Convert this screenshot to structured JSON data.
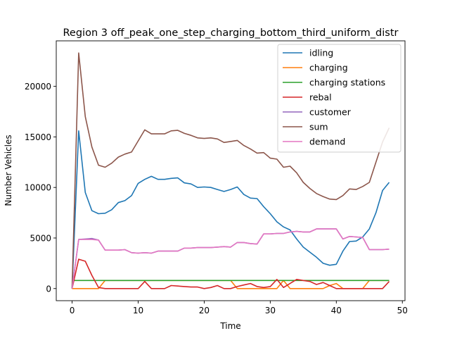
{
  "chart_data": {
    "type": "line",
    "title": "Region 3 off_peak_one_step_charging_bottom_third_uniform_distr",
    "xlabel": "Time",
    "ylabel": "Number Vehicles",
    "xlim": [
      -2.4,
      50.4
    ],
    "ylim": [
      -1200,
      24500
    ],
    "xticks": [
      0,
      10,
      20,
      30,
      40,
      50
    ],
    "yticks": [
      0,
      5000,
      10000,
      15000,
      20000
    ],
    "grid": false,
    "legend_position": "top-right",
    "x": [
      0,
      1,
      2,
      3,
      4,
      5,
      6,
      7,
      8,
      9,
      10,
      11,
      12,
      13,
      14,
      15,
      16,
      17,
      18,
      19,
      20,
      21,
      22,
      23,
      24,
      25,
      26,
      27,
      28,
      29,
      30,
      31,
      32,
      33,
      34,
      35,
      36,
      37,
      38,
      39,
      40,
      41,
      42,
      43,
      44,
      45,
      46,
      47,
      48
    ],
    "series": [
      {
        "name": "idling",
        "color": "#1f77b4",
        "values": [
          0,
          15600,
          9500,
          7700,
          7400,
          7450,
          7800,
          8500,
          8700,
          9200,
          10400,
          10800,
          11100,
          10800,
          10800,
          10900,
          10950,
          10450,
          10350,
          10000,
          10050,
          10000,
          9800,
          9600,
          9800,
          10050,
          9300,
          8950,
          8900,
          8100,
          7400,
          6600,
          6100,
          5800,
          4900,
          4100,
          3600,
          3100,
          2500,
          2300,
          2400,
          3700,
          4650,
          4700,
          5100,
          5900,
          7500,
          9700,
          10500
        ]
      },
      {
        "name": "charging",
        "color": "#ff7f0e",
        "values": [
          0,
          0,
          0,
          0,
          0,
          800,
          800,
          800,
          800,
          800,
          800,
          800,
          800,
          800,
          800,
          800,
          800,
          800,
          800,
          800,
          800,
          800,
          800,
          800,
          800,
          0,
          0,
          0,
          0,
          0,
          0,
          0,
          800,
          0,
          0,
          0,
          0,
          0,
          0,
          300,
          500,
          0,
          0,
          0,
          0,
          800,
          800,
          800,
          800
        ]
      },
      {
        "name": "charging stations",
        "color": "#2ca02c",
        "values": [
          800,
          800,
          800,
          800,
          800,
          800,
          800,
          800,
          800,
          800,
          800,
          800,
          800,
          800,
          800,
          800,
          800,
          800,
          800,
          800,
          800,
          800,
          800,
          800,
          800,
          800,
          800,
          800,
          800,
          800,
          800,
          800,
          800,
          800,
          800,
          800,
          800,
          800,
          800,
          800,
          800,
          800,
          800,
          800,
          800,
          800,
          800,
          800,
          800
        ]
      },
      {
        "name": "rebal",
        "color": "#d62728",
        "values": [
          0,
          2900,
          2700,
          1300,
          100,
          0,
          0,
          0,
          0,
          0,
          0,
          700,
          0,
          0,
          0,
          300,
          250,
          200,
          150,
          150,
          0,
          100,
          300,
          0,
          0,
          200,
          350,
          500,
          200,
          100,
          200,
          900,
          100,
          500,
          900,
          800,
          700,
          400,
          600,
          300,
          0,
          0,
          0,
          0,
          0,
          0,
          0,
          0,
          700
        ]
      },
      {
        "name": "customer",
        "color": "#9467bd",
        "values": [
          0,
          4850,
          4900,
          4950,
          4800,
          3800,
          3800,
          3800,
          3850,
          3550,
          3500,
          3550,
          3500,
          3700,
          3700,
          3700,
          3700,
          4000,
          4000,
          4050,
          4050,
          4050,
          4100,
          4150,
          4100,
          4550,
          4550,
          4450,
          4400,
          5400,
          5400,
          5450,
          5450,
          5600,
          5650,
          5600,
          5600,
          5900,
          5900,
          5900,
          5900,
          4900,
          5150,
          5100,
          5050,
          3850,
          3850,
          3850,
          3900
        ]
      },
      {
        "name": "sum",
        "color": "#8c564b",
        "values": [
          0,
          23300,
          17000,
          14000,
          12200,
          12000,
          12400,
          13000,
          13300,
          13500,
          14600,
          15700,
          15300,
          15300,
          15300,
          15600,
          15650,
          15350,
          15150,
          14900,
          14850,
          14900,
          14800,
          14450,
          14550,
          14650,
          14150,
          13800,
          13400,
          13450,
          12900,
          12800,
          12000,
          12100,
          11450,
          10500,
          9900,
          9400,
          9100,
          8850,
          8800,
          9200,
          9850,
          9800,
          10100,
          10500,
          12500,
          14500,
          15900
        ]
      },
      {
        "name": "demand",
        "color": "#e377c2",
        "values": [
          0,
          4850,
          4850,
          4850,
          4800,
          3800,
          3800,
          3800,
          3850,
          3550,
          3500,
          3550,
          3500,
          3700,
          3700,
          3700,
          3700,
          4000,
          4000,
          4050,
          4050,
          4050,
          4100,
          4150,
          4100,
          4550,
          4550,
          4450,
          4400,
          5400,
          5400,
          5450,
          5450,
          5600,
          5650,
          5600,
          5600,
          5900,
          5900,
          5900,
          5900,
          4900,
          5150,
          5100,
          5050,
          3850,
          3850,
          3850,
          3900
        ]
      }
    ]
  }
}
